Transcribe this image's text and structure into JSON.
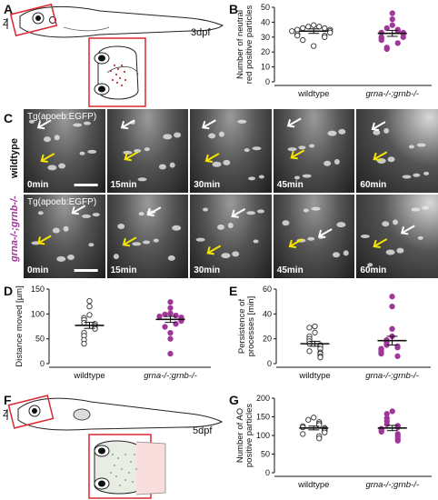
{
  "panels": {
    "A": {
      "label": "A",
      "stage": "3dpf",
      "axis": "Z"
    },
    "B": {
      "label": "B"
    },
    "C": {
      "label": "C",
      "rows": [
        {
          "name": "wildtype",
          "transgene": "Tg(apoeb:EGFP)",
          "times": [
            "0min",
            "15min",
            "30min",
            "45min",
            "60min"
          ]
        },
        {
          "name": "grna-/-;grnb-/-",
          "transgene": "Tg(apoeb:EGFP)",
          "times": [
            "0min",
            "15min",
            "30min",
            "45min",
            "60min"
          ]
        }
      ]
    },
    "D": {
      "label": "D"
    },
    "E": {
      "label": "E"
    },
    "F": {
      "label": "F",
      "stage": "5dpf",
      "axis": "Z"
    },
    "G": {
      "label": "G"
    }
  },
  "colors": {
    "wildtype": "#ffffff",
    "mutant": "#a0369a",
    "red_box": "#d9282f",
    "yellow_arrow": "#f5e400",
    "white_arrow": "#ffffff"
  },
  "chart_data": [
    {
      "id": "B",
      "type": "scatter",
      "ylabel": "Number of neutral red positive particles",
      "categories": [
        "wildtype",
        "grna-/-;grnb-/-"
      ],
      "ylim": [
        0,
        50
      ],
      "yticks": [
        0,
        10,
        20,
        30,
        40,
        50
      ],
      "series": [
        {
          "name": "wildtype",
          "mean": 34,
          "sem": 1.5,
          "values": [
            38,
            37,
            37,
            36,
            36,
            35,
            35,
            34,
            34,
            33,
            32,
            31,
            31,
            30,
            28,
            24
          ]
        },
        {
          "name": "grna-/-;grnb-/-",
          "mean": 32.5,
          "sem": 2,
          "values": [
            46,
            42,
            38,
            36,
            35,
            34,
            33,
            33,
            32,
            30,
            30,
            29,
            28,
            26,
            23,
            22
          ]
        }
      ]
    },
    {
      "id": "D",
      "type": "scatter",
      "ylabel": "Distance moved [µm]",
      "categories": [
        "wildtype",
        "grna-/-;grnb-/-"
      ],
      "ylim": [
        0,
        150
      ],
      "yticks": [
        0,
        50,
        100,
        150
      ],
      "series": [
        {
          "name": "wildtype",
          "mean": 77,
          "sem": 6,
          "values": [
            126,
            115,
            98,
            92,
            88,
            82,
            80,
            76,
            72,
            70,
            62,
            56,
            48,
            40
          ]
        },
        {
          "name": "grna-/-;grnb-/-",
          "mean": 89,
          "sem": 6,
          "values": [
            124,
            112,
            101,
            99,
            97,
            95,
            93,
            91,
            88,
            86,
            80,
            74,
            62,
            50,
            20
          ]
        }
      ]
    },
    {
      "id": "E",
      "type": "scatter",
      "ylabel": "Persistence of processes [min]",
      "categories": [
        "wildtype",
        "grna-/-;grnb-/-"
      ],
      "ylim": [
        0,
        60
      ],
      "yticks": [
        0,
        20,
        40,
        60
      ],
      "series": [
        {
          "name": "wildtype",
          "mean": 16,
          "sem": 2,
          "values": [
            30,
            29,
            25,
            22,
            20,
            18,
            16,
            15,
            14,
            12,
            10,
            9,
            8,
            6,
            5
          ]
        },
        {
          "name": "grna-/-;grnb-/-",
          "mean": 18.5,
          "sem": 3.5,
          "values": [
            54,
            46,
            28,
            22,
            19,
            17,
            15,
            14,
            13,
            12,
            11,
            10,
            9,
            8,
            6
          ]
        }
      ]
    },
    {
      "id": "G",
      "type": "scatter",
      "ylabel": "Number of AO positive particles",
      "categories": [
        "wildtype",
        "grna-/-;grnb-/-"
      ],
      "ylim": [
        0,
        200
      ],
      "yticks": [
        0,
        50,
        100,
        150,
        200
      ],
      "series": [
        {
          "name": "wildtype",
          "mean": 120,
          "sem": 5,
          "values": [
            148,
            142,
            136,
            132,
            128,
            125,
            122,
            120,
            118,
            115,
            112,
            108,
            104,
            98,
            92
          ]
        },
        {
          "name": "grna-/-;grnb-/-",
          "mean": 120,
          "sem": 7,
          "values": [
            165,
            158,
            146,
            138,
            130,
            126,
            122,
            118,
            114,
            110,
            104,
            98,
            92,
            86
          ]
        }
      ]
    }
  ]
}
